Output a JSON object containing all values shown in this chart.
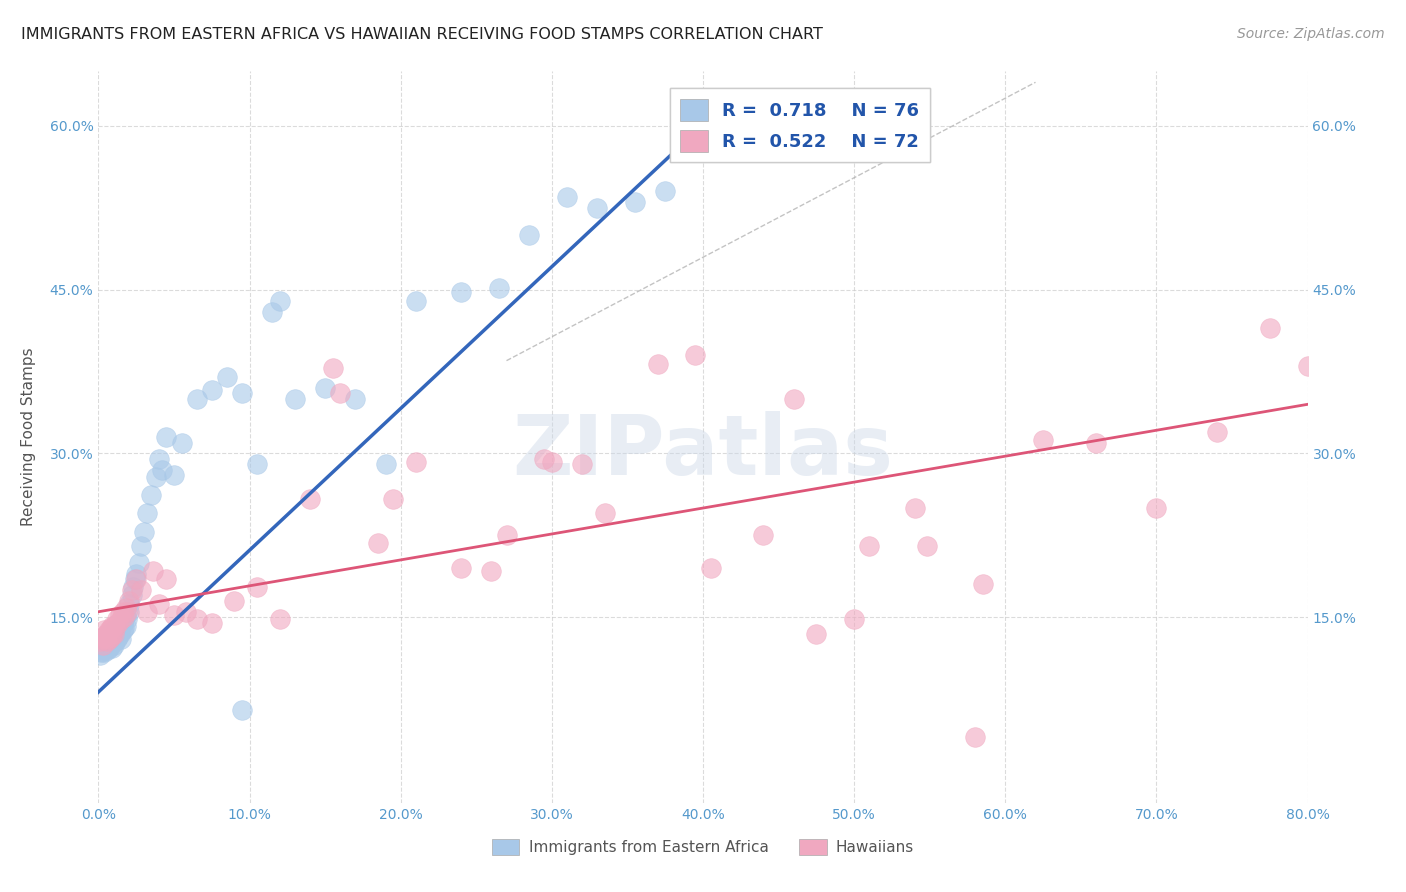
{
  "title": "IMMIGRANTS FROM EASTERN AFRICA VS HAWAIIAN RECEIVING FOOD STAMPS CORRELATION CHART",
  "source": "Source: ZipAtlas.com",
  "ylabel": "Receiving Food Stamps",
  "xlim": [
    0.0,
    0.8
  ],
  "ylim": [
    -0.02,
    0.65
  ],
  "xtick_labels": [
    "0.0%",
    "",
    "10.0%",
    "",
    "20.0%",
    "",
    "30.0%",
    "",
    "40.0%",
    "",
    "50.0%",
    "",
    "60.0%",
    "",
    "70.0%",
    "",
    "80.0%"
  ],
  "xtick_vals": [
    0.0,
    0.05,
    0.1,
    0.15,
    0.2,
    0.25,
    0.3,
    0.35,
    0.4,
    0.45,
    0.5,
    0.55,
    0.6,
    0.65,
    0.7,
    0.75,
    0.8
  ],
  "ytick_labels": [
    "15.0%",
    "30.0%",
    "45.0%",
    "60.0%"
  ],
  "ytick_vals": [
    0.15,
    0.3,
    0.45,
    0.6
  ],
  "color_blue": "#a8c8e8",
  "color_pink": "#f0a8c0",
  "line_blue": "#3366bb",
  "line_pink": "#dd5577",
  "legend_label1": "Immigrants from Eastern Africa",
  "legend_label2": "Hawaiians",
  "watermark": "ZIPatlas",
  "background_color": "#ffffff",
  "grid_color": "#cccccc",
  "title_color": "#222222",
  "blue_scatter_x": [
    0.001,
    0.002,
    0.003,
    0.003,
    0.004,
    0.004,
    0.005,
    0.005,
    0.006,
    0.006,
    0.006,
    0.007,
    0.007,
    0.007,
    0.008,
    0.008,
    0.009,
    0.009,
    0.009,
    0.01,
    0.01,
    0.01,
    0.011,
    0.011,
    0.012,
    0.012,
    0.013,
    0.013,
    0.014,
    0.014,
    0.015,
    0.015,
    0.016,
    0.016,
    0.017,
    0.017,
    0.018,
    0.018,
    0.019,
    0.02,
    0.02,
    0.022,
    0.023,
    0.024,
    0.025,
    0.027,
    0.028,
    0.03,
    0.032,
    0.035,
    0.038,
    0.04,
    0.042,
    0.045,
    0.05,
    0.055,
    0.065,
    0.075,
    0.085,
    0.095,
    0.105,
    0.115,
    0.13,
    0.15,
    0.17,
    0.19,
    0.21,
    0.24,
    0.265,
    0.285,
    0.31,
    0.33,
    0.355,
    0.375,
    0.095,
    0.12
  ],
  "blue_scatter_y": [
    0.115,
    0.118,
    0.12,
    0.122,
    0.118,
    0.125,
    0.122,
    0.128,
    0.12,
    0.125,
    0.132,
    0.122,
    0.128,
    0.135,
    0.125,
    0.132,
    0.122,
    0.128,
    0.135,
    0.125,
    0.13,
    0.138,
    0.128,
    0.135,
    0.13,
    0.138,
    0.132,
    0.14,
    0.135,
    0.142,
    0.13,
    0.14,
    0.138,
    0.145,
    0.14,
    0.148,
    0.142,
    0.152,
    0.148,
    0.155,
    0.162,
    0.17,
    0.178,
    0.185,
    0.19,
    0.2,
    0.215,
    0.228,
    0.245,
    0.262,
    0.278,
    0.295,
    0.285,
    0.315,
    0.28,
    0.31,
    0.35,
    0.358,
    0.37,
    0.355,
    0.29,
    0.43,
    0.35,
    0.36,
    0.35,
    0.29,
    0.44,
    0.448,
    0.452,
    0.5,
    0.535,
    0.525,
    0.53,
    0.54,
    0.065,
    0.44
  ],
  "pink_scatter_x": [
    0.001,
    0.002,
    0.003,
    0.004,
    0.004,
    0.005,
    0.005,
    0.006,
    0.006,
    0.007,
    0.007,
    0.008,
    0.008,
    0.009,
    0.009,
    0.01,
    0.01,
    0.011,
    0.012,
    0.013,
    0.014,
    0.015,
    0.016,
    0.017,
    0.018,
    0.019,
    0.02,
    0.022,
    0.025,
    0.028,
    0.032,
    0.036,
    0.04,
    0.045,
    0.05,
    0.058,
    0.065,
    0.075,
    0.09,
    0.105,
    0.12,
    0.14,
    0.16,
    0.185,
    0.21,
    0.24,
    0.27,
    0.3,
    0.335,
    0.37,
    0.405,
    0.44,
    0.475,
    0.51,
    0.548,
    0.585,
    0.625,
    0.66,
    0.7,
    0.74,
    0.775,
    0.8,
    0.46,
    0.395,
    0.54,
    0.58,
    0.195,
    0.155,
    0.32,
    0.295,
    0.26,
    0.5
  ],
  "pink_scatter_y": [
    0.128,
    0.13,
    0.125,
    0.132,
    0.138,
    0.13,
    0.135,
    0.128,
    0.135,
    0.13,
    0.138,
    0.132,
    0.14,
    0.135,
    0.142,
    0.135,
    0.142,
    0.14,
    0.148,
    0.145,
    0.152,
    0.148,
    0.155,
    0.15,
    0.158,
    0.155,
    0.165,
    0.175,
    0.185,
    0.175,
    0.155,
    0.192,
    0.162,
    0.185,
    0.152,
    0.155,
    0.148,
    0.145,
    0.165,
    0.178,
    0.148,
    0.258,
    0.355,
    0.218,
    0.292,
    0.195,
    0.225,
    0.292,
    0.245,
    0.382,
    0.195,
    0.225,
    0.135,
    0.215,
    0.215,
    0.18,
    0.312,
    0.31,
    0.25,
    0.32,
    0.415,
    0.38,
    0.35,
    0.39,
    0.25,
    0.04,
    0.258,
    0.378,
    0.29,
    0.295,
    0.192,
    0.148
  ],
  "blue_line_x": [
    -0.005,
    0.38
  ],
  "blue_line_y": [
    0.075,
    0.575
  ],
  "pink_line_x": [
    0.0,
    0.8
  ],
  "pink_line_y": [
    0.155,
    0.345
  ],
  "dashed_line_x": [
    0.27,
    0.62
  ],
  "dashed_line_y": [
    0.385,
    0.64
  ]
}
